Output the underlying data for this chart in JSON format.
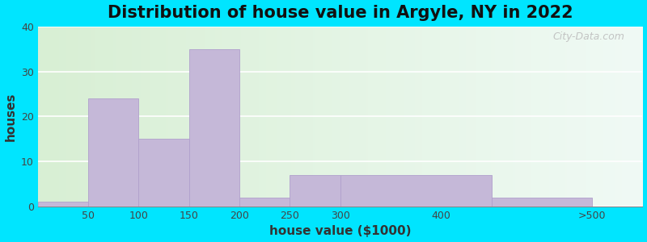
{
  "title": "Distribution of house value in Argyle, NY in 2022",
  "xlabel": "house value ($1000)",
  "ylabel": "houses",
  "bar_lefts": [
    0,
    50,
    100,
    150,
    200,
    250,
    300,
    450
  ],
  "bar_widths": [
    50,
    50,
    50,
    50,
    50,
    50,
    150,
    100
  ],
  "bar_values": [
    1,
    24,
    15,
    35,
    2,
    7,
    7,
    2
  ],
  "xtick_positions": [
    50,
    100,
    150,
    200,
    250,
    300,
    400,
    550
  ],
  "xtick_labels": [
    "50",
    "100",
    "150",
    "200",
    "250",
    "300",
    "400",
    ">500"
  ],
  "bar_color": "#c5b8d8",
  "bar_edge_color": "#b0a0cc",
  "ylim": [
    0,
    40
  ],
  "yticks": [
    0,
    10,
    20,
    30,
    40
  ],
  "outer_background": "#00e5ff",
  "bg_color_left": "#d8efd4",
  "bg_color_right": "#e8f5f5",
  "title_fontsize": 15,
  "axis_label_fontsize": 11,
  "tick_fontsize": 9,
  "watermark_text": "City-Data.com"
}
